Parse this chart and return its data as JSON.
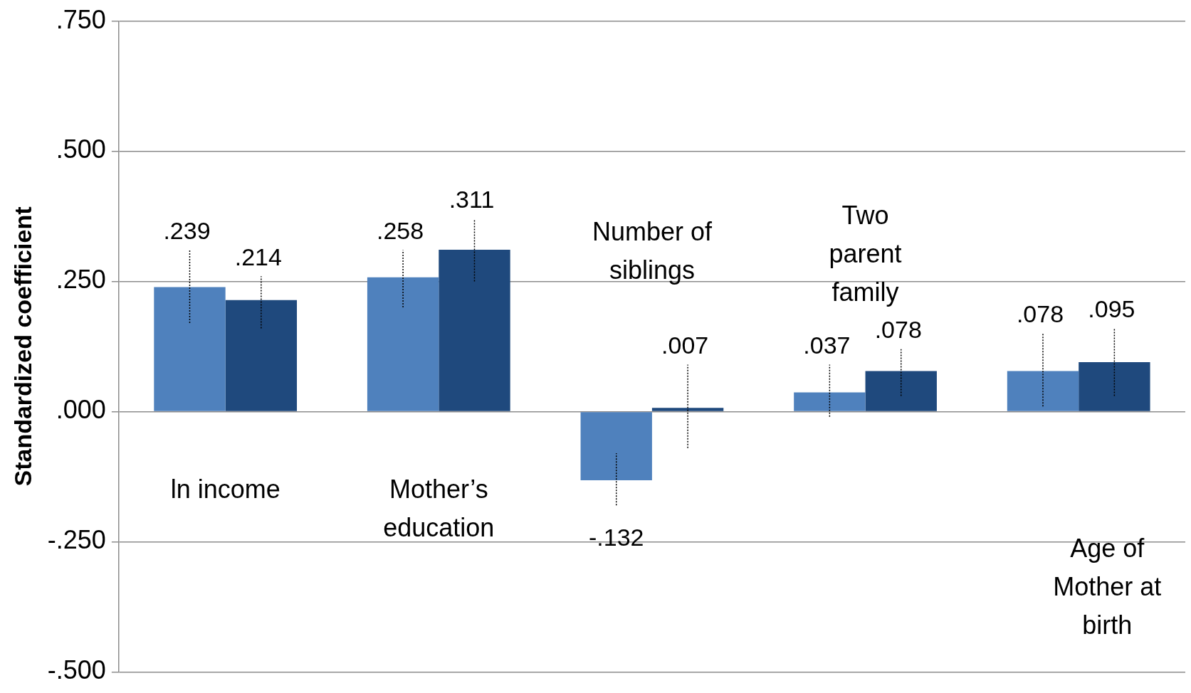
{
  "chart_data": {
    "type": "bar",
    "ylabel": "Standardized coefficient",
    "categories": [
      "ln income",
      "Mother’s education",
      "Number of siblings",
      "Two parent family",
      "Age of Mother at birth"
    ],
    "series": [
      {
        "color": "#4f81bd",
        "values": [
          0.239,
          0.258,
          -0.132,
          0.037,
          0.078
        ],
        "value_labels": [
          ".239",
          ".258",
          "-.132",
          ".037",
          ".078"
        ],
        "errors": [
          [
            0.17,
            0.31
          ],
          [
            0.2,
            0.31
          ],
          [
            -0.18,
            -0.08
          ],
          [
            -0.01,
            0.09
          ],
          [
            0.01,
            0.15
          ]
        ]
      },
      {
        "color": "#1f497d",
        "values": [
          0.214,
          0.311,
          0.007,
          0.078,
          0.095
        ],
        "value_labels": [
          ".214",
          ".311",
          ".007",
          ".078",
          ".095"
        ],
        "errors": [
          [
            0.16,
            0.26
          ],
          [
            0.25,
            0.37
          ],
          [
            -0.07,
            0.09
          ],
          [
            0.03,
            0.12
          ],
          [
            0.03,
            0.16
          ]
        ]
      }
    ],
    "ylim": [
      -0.5,
      0.75
    ],
    "yticks": [
      {
        "value": -0.5,
        "label": "-.500"
      },
      {
        "value": -0.25,
        "label": "-.250"
      },
      {
        "value": 0,
        "label": ".000"
      },
      {
        "value": 0.25,
        "label": ".250"
      },
      {
        "value": 0.5,
        "label": ".500"
      },
      {
        "value": 0.75,
        "label": ".750"
      }
    ],
    "grid": "y",
    "legend": false,
    "tick_labels": "y"
  }
}
